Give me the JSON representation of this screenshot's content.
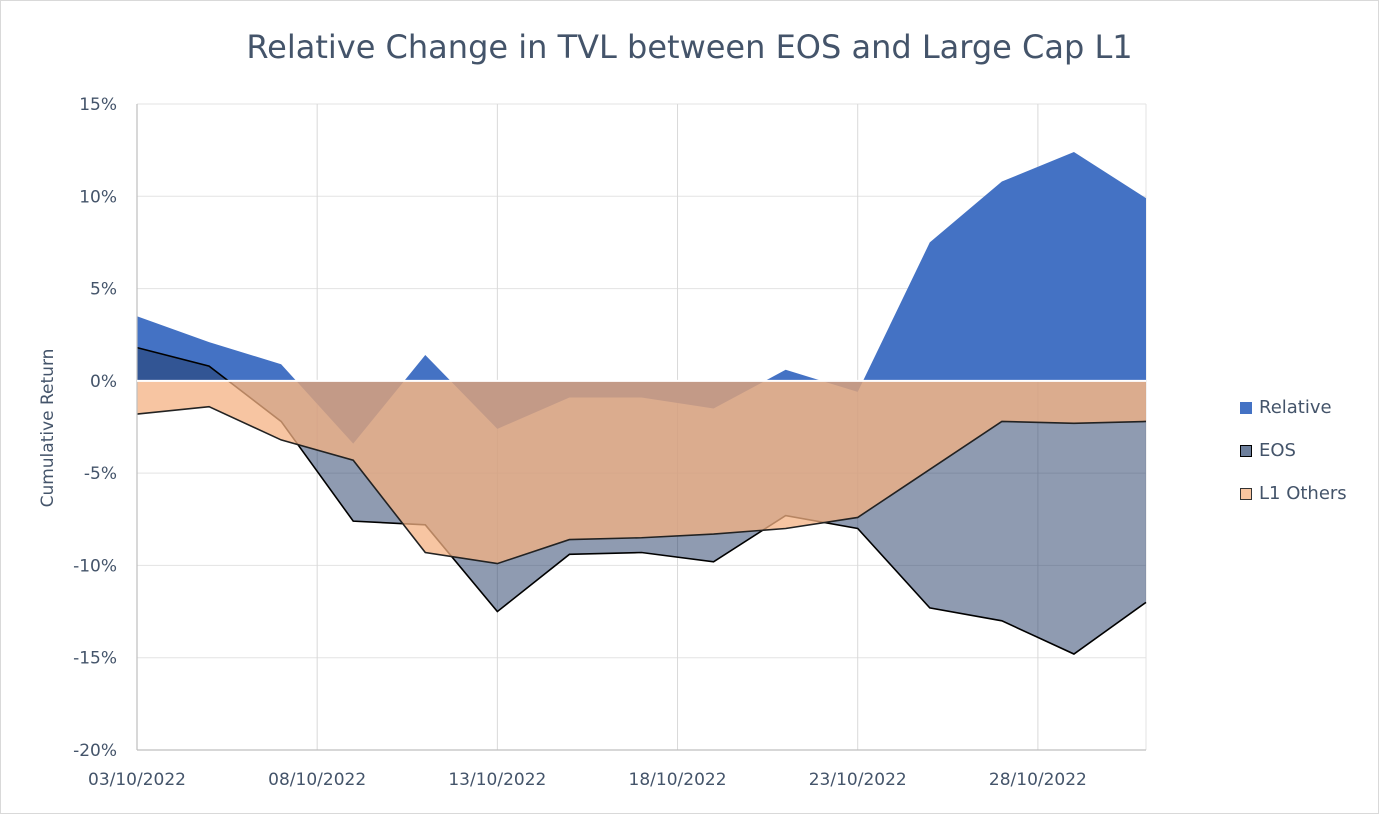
{
  "chart_data": {
    "type": "area",
    "title": "Relative Change in TVL between EOS and Large Cap L1",
    "xlabel": "",
    "ylabel": "Cumulative Return",
    "ylim": [
      -0.2,
      0.15
    ],
    "y_ticks": [
      0.15,
      0.1,
      0.05,
      0,
      -0.05,
      -0.1,
      -0.15,
      -0.2
    ],
    "y_tick_labels": [
      "15%",
      "10%",
      "5%",
      "0%",
      "-5%",
      "-10%",
      "-15%",
      "-20%"
    ],
    "x_tick_labels": [
      "03/10/2022",
      "08/10/2022",
      "13/10/2022",
      "18/10/2022",
      "23/10/2022",
      "28/10/2022"
    ],
    "x_tick_index": [
      0,
      5,
      10,
      15,
      20,
      25
    ],
    "x": [
      "03/10/2022",
      "05/10/2022",
      "07/10/2022",
      "09/10/2022",
      "11/10/2022",
      "13/10/2022",
      "15/10/2022",
      "17/10/2022",
      "19/10/2022",
      "21/10/2022",
      "23/10/2022",
      "25/10/2022",
      "27/10/2022",
      "29/10/2022",
      "31/10/2022"
    ],
    "x_index": [
      0,
      2,
      4,
      6,
      8,
      10,
      12,
      14,
      16,
      18,
      20,
      22,
      24,
      26,
      28
    ],
    "grid": "vertical",
    "legend_position": "right",
    "series": [
      {
        "name": "Relative",
        "color": "#4472c4",
        "values": [
          0.035,
          0.021,
          0.009,
          -0.034,
          0.014,
          -0.026,
          -0.009,
          -0.009,
          -0.015,
          0.006,
          -0.006,
          0.075,
          0.108,
          0.124,
          0.099
        ]
      },
      {
        "name": "EOS",
        "color": "#8497b0",
        "values": [
          0.018,
          0.008,
          -0.022,
          -0.076,
          -0.078,
          -0.125,
          -0.094,
          -0.093,
          -0.098,
          -0.073,
          -0.08,
          -0.123,
          -0.13,
          -0.148,
          -0.12
        ]
      },
      {
        "name": "L1 Others",
        "color": "#f4b183",
        "values": [
          -0.018,
          -0.014,
          -0.032,
          -0.043,
          -0.093,
          -0.099,
          -0.086,
          -0.085,
          -0.083,
          -0.08,
          -0.074,
          -0.048,
          -0.022,
          -0.023,
          -0.022
        ]
      }
    ]
  }
}
